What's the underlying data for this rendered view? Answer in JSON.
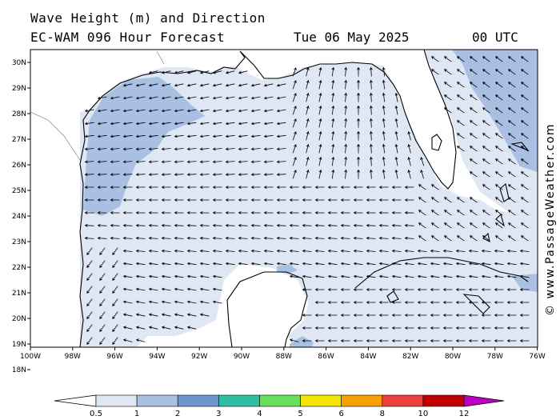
{
  "title_line1": "Wave Height (m) and Direction",
  "title_line2": "EC-WAM 096 Hour Forecast",
  "date": "Tue 06 May 2025",
  "time": "00 UTC",
  "credit": "© www.PassageWeather.com",
  "colors": {
    "land": "#ffffff",
    "sea_05_1": "#dfe7f5",
    "sea_1_2": "#a9c0e3",
    "coast": "#000000",
    "arrow": "#000000"
  },
  "lat_ticks": [
    "30N",
    "29N",
    "28N",
    "27N",
    "26N",
    "25N",
    "24N",
    "23N",
    "22N",
    "21N",
    "20N",
    "19N",
    "18N"
  ],
  "lon_ticks": [
    "100W",
    "98W",
    "96W",
    "94W",
    "92W",
    "90W",
    "88W",
    "86W",
    "84W",
    "82W",
    "80W",
    "78W",
    "76W"
  ],
  "legend": {
    "labels": [
      "0.5",
      "1",
      "2",
      "3",
      "4",
      "5",
      "6",
      "8",
      "10",
      "12"
    ],
    "colors": [
      "#dfe7f5",
      "#a9c0e3",
      "#6f94cf",
      "#2fbfa0",
      "#66e05a",
      "#f4e600",
      "#f7a100",
      "#ee3e3e",
      "#c00000",
      "#c000c0"
    ]
  }
}
